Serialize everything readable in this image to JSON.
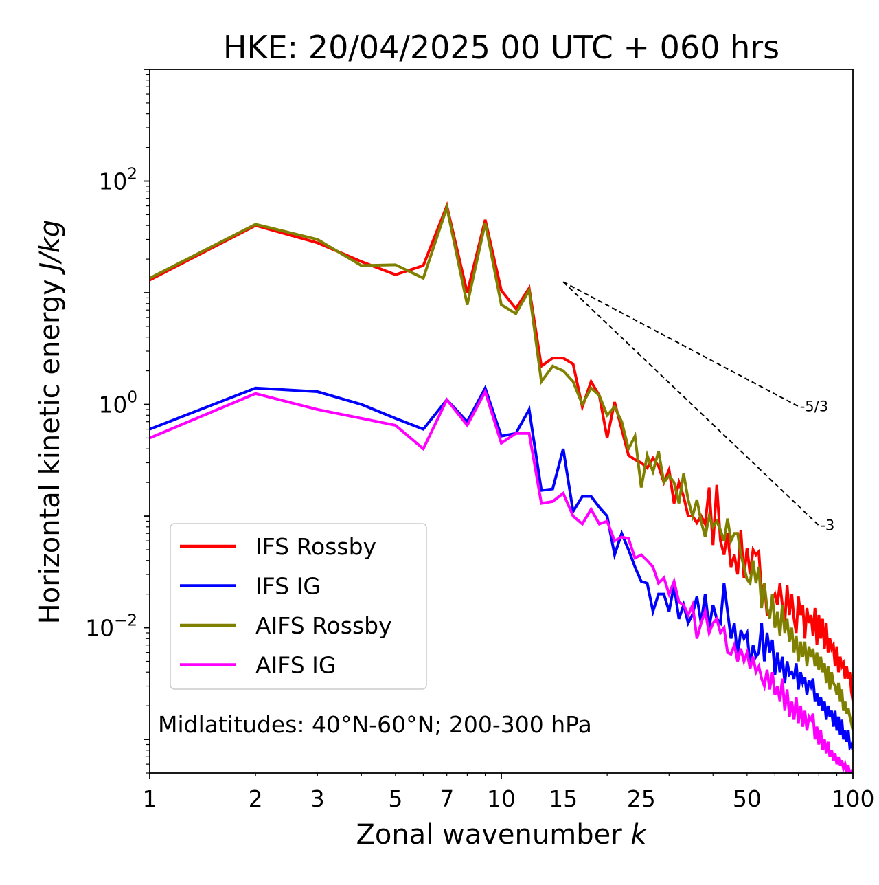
{
  "chart_data": {
    "type": "line",
    "title": "HKE: 20/04/2025 00 UTC + 060 hrs",
    "xlabel": "Zonal wavenumber",
    "xlabel_var": "k",
    "ylabel": "Horizontal kinetic energy",
    "ylabel_unit": "J/kg",
    "x_scale": "log",
    "y_scale": "log",
    "xlim": [
      1,
      100
    ],
    "ylim": [
      0.0005,
      1000
    ],
    "grid": false,
    "legend_position": "lower-left",
    "x_ticks": [
      {
        "value": 1,
        "label": "1"
      },
      {
        "value": 2,
        "label": "2"
      },
      {
        "value": 3,
        "label": "3"
      },
      {
        "value": 5,
        "label": "5"
      },
      {
        "value": 7,
        "label": "7"
      },
      {
        "value": 10,
        "label": "10"
      },
      {
        "value": 15,
        "label": "15"
      },
      {
        "value": 25,
        "label": "25"
      },
      {
        "value": 50,
        "label": "50"
      },
      {
        "value": 100,
        "label": "100"
      }
    ],
    "y_ticks": [
      {
        "value": 100,
        "base": "10",
        "exp": "2"
      },
      {
        "value": 1,
        "base": "10",
        "exp": "0"
      },
      {
        "value": 0.01,
        "base": "10",
        "exp": "−2"
      }
    ],
    "annotation": "Midlatitudes: 40°N-60°N; 200-300 hPa",
    "reference_lines": [
      {
        "label": "-5/3",
        "slope": -1.6667,
        "x": [
          15,
          70
        ],
        "y0": 12.5
      },
      {
        "label": "-3",
        "slope": -3,
        "x": [
          15,
          80
        ],
        "y0": 12.5
      }
    ],
    "series": [
      {
        "name": "IFS Rossby",
        "color": "#ff0000",
        "values": [
          13.0,
          40.0,
          28.0,
          19.0,
          14.5,
          17.5,
          60.0,
          10.0,
          45.0,
          10.5,
          7.2,
          11.0,
          2.2,
          2.6,
          2.6,
          2.3,
          0.95,
          1.6,
          1.2,
          0.5,
          1.05,
          0.6,
          0.35,
          0.32,
          0.3,
          0.27,
          0.33,
          0.28,
          0.2,
          0.26,
          0.13,
          0.2,
          0.15,
          0.1,
          0.1,
          0.087,
          0.1,
          0.085,
          0.18,
          0.055,
          0.19,
          0.06,
          0.045,
          0.07,
          0.035,
          0.045,
          0.03,
          0.075,
          0.028,
          0.052,
          0.03,
          0.05,
          0.045,
          0.048,
          0.02,
          0.025,
          0.013,
          0.013,
          0.018,
          0.02,
          0.016,
          0.025,
          0.016,
          0.011,
          0.024,
          0.013,
          0.02,
          0.012,
          0.009,
          0.019,
          0.013,
          0.016,
          0.008,
          0.015,
          0.011,
          0.013,
          0.0085,
          0.015,
          0.007,
          0.013,
          0.008,
          0.012,
          0.0065,
          0.011,
          0.006,
          0.008,
          0.0065,
          0.007,
          0.0045,
          0.0068,
          0.004,
          0.0055,
          0.0045,
          0.0048,
          0.0035,
          0.0045,
          0.0035,
          0.004,
          0.0027,
          0.0022
        ]
      },
      {
        "name": "IFS IG",
        "color": "#0000ff",
        "values": [
          0.6,
          1.4,
          1.3,
          1.0,
          0.75,
          0.6,
          1.1,
          0.7,
          1.4,
          0.52,
          0.55,
          0.9,
          0.17,
          0.175,
          0.4,
          0.11,
          0.15,
          0.15,
          0.12,
          0.1,
          0.045,
          0.07,
          0.05,
          0.035,
          0.026,
          0.025,
          0.014,
          0.02,
          0.02,
          0.014,
          0.024,
          0.012,
          0.016,
          0.011,
          0.0132,
          0.019,
          0.011,
          0.02,
          0.01,
          0.016,
          0.012,
          0.011,
          0.025,
          0.014,
          0.008,
          0.011,
          0.0055,
          0.0095,
          0.008,
          0.009,
          0.0045,
          0.007,
          0.0055,
          0.006,
          0.011,
          0.005,
          0.009,
          0.006,
          0.0078,
          0.0038,
          0.006,
          0.004,
          0.0055,
          0.0032,
          0.005,
          0.0038,
          0.004,
          0.0035,
          0.0048,
          0.0028,
          0.004,
          0.0032,
          0.0036,
          0.0025,
          0.0034,
          0.003,
          0.0035,
          0.0022,
          0.0026,
          0.002,
          0.0024,
          0.0018,
          0.0022,
          0.0015,
          0.002,
          0.0016,
          0.0018,
          0.0013,
          0.0018,
          0.0012,
          0.0016,
          0.0011,
          0.0015,
          0.001,
          0.0012,
          0.00095,
          0.0012,
          0.00085,
          0.0009,
          0.0008
        ]
      },
      {
        "name": "AIFS Rossby",
        "color": "#808000",
        "values": [
          13.5,
          41.0,
          30.0,
          17.5,
          17.8,
          13.5,
          58.0,
          7.8,
          42.0,
          7.8,
          6.5,
          10.5,
          1.6,
          2.2,
          2.0,
          1.6,
          1.0,
          1.4,
          1.2,
          0.8,
          0.95,
          0.7,
          0.4,
          0.52,
          0.18,
          0.35,
          0.25,
          0.38,
          0.2,
          0.23,
          0.2,
          0.13,
          0.24,
          0.14,
          0.1,
          0.14,
          0.09,
          0.065,
          0.1,
          0.08,
          0.09,
          0.075,
          0.06,
          0.095,
          0.06,
          0.07,
          0.07,
          0.045,
          0.035,
          0.027,
          0.025,
          0.04,
          0.025,
          0.035,
          0.015,
          0.025,
          0.015,
          0.012,
          0.02,
          0.01,
          0.014,
          0.0085,
          0.016,
          0.009,
          0.012,
          0.0075,
          0.01,
          0.006,
          0.0085,
          0.005,
          0.0075,
          0.0055,
          0.0075,
          0.0045,
          0.0068,
          0.0055,
          0.0065,
          0.0045,
          0.006,
          0.0042,
          0.0055,
          0.004,
          0.0048,
          0.0032,
          0.0045,
          0.0028,
          0.004,
          0.0032,
          0.003,
          0.0025,
          0.0032,
          0.0022,
          0.0028,
          0.0018,
          0.0022,
          0.0017,
          0.0019,
          0.0016,
          0.0014,
          0.0012
        ]
      },
      {
        "name": "AIFS IG",
        "color": "#ff00ff",
        "values": [
          0.5,
          1.25,
          0.9,
          0.75,
          0.65,
          0.4,
          1.1,
          0.65,
          1.3,
          0.45,
          0.55,
          0.55,
          0.13,
          0.135,
          0.16,
          0.1,
          0.085,
          0.115,
          0.085,
          0.09,
          0.06,
          0.065,
          0.063,
          0.042,
          0.045,
          0.04,
          0.035,
          0.025,
          0.028,
          0.02,
          0.026,
          0.017,
          0.016,
          0.013,
          0.016,
          0.008,
          0.011,
          0.014,
          0.009,
          0.011,
          0.012,
          0.009,
          0.01,
          0.006,
          0.0058,
          0.007,
          0.005,
          0.0065,
          0.005,
          0.006,
          0.0043,
          0.0055,
          0.004,
          0.0045,
          0.0035,
          0.003,
          0.0042,
          0.0028,
          0.004,
          0.0025,
          0.003,
          0.0022,
          0.0035,
          0.0018,
          0.0028,
          0.0016,
          0.0022,
          0.0015,
          0.0024,
          0.0014,
          0.002,
          0.0013,
          0.0018,
          0.0012,
          0.0016,
          0.0015,
          0.0017,
          0.001,
          0.0013,
          0.0009,
          0.0012,
          0.0008,
          0.001,
          0.00075,
          0.00095,
          0.0007,
          0.0008,
          0.00065,
          0.00075,
          0.0006,
          0.0007,
          0.00058,
          0.00065,
          0.00055,
          0.0006,
          0.00052,
          0.00058,
          0.0005,
          0.00052,
          0.00045
        ]
      }
    ]
  }
}
